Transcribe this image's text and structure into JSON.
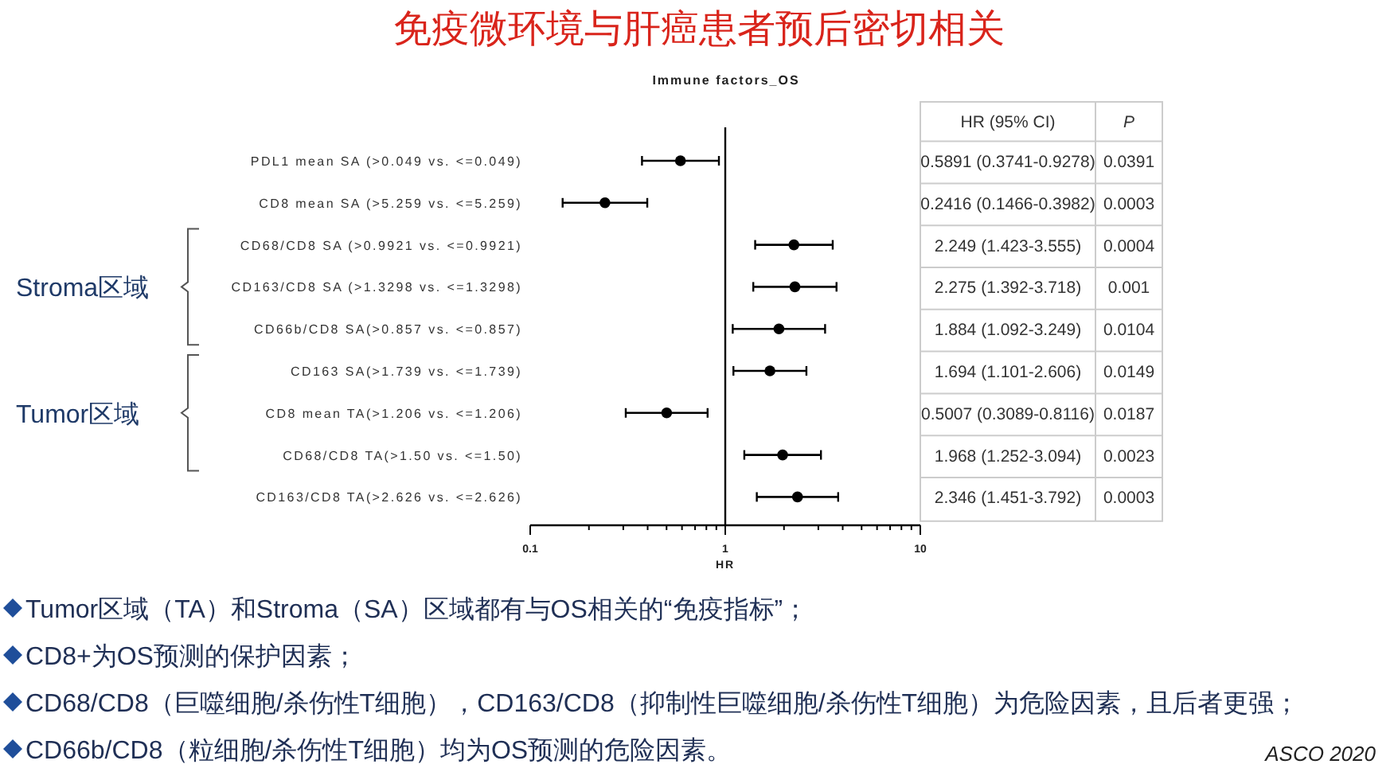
{
  "chart_data": {
    "type": "scatter",
    "orientation": "horizontal",
    "title": "免疫微环境与肝癌患者预后密切相关",
    "subtitle": "Immune factors_OS",
    "xlabel": "HR",
    "log": "x",
    "xlim": [
      0.1,
      10
    ],
    "xticks": [
      0.1,
      1,
      10
    ],
    "marker": "circle",
    "grid": false,
    "categories": [
      "PDL1 mean SA (>0.049 vs. <=0.049)",
      "CD8 mean SA (>5.259 vs. <=5.259)",
      "CD68/CD8 SA (>0.9921 vs. <=0.9921)",
      "CD163/CD8 SA (>1.3298 vs. <=1.3298)",
      "CD66b/CD8 SA(>0.857 vs. <=0.857)",
      "CD163 SA(>1.739 vs. <=1.739)",
      "CD8 mean TA(>1.206 vs. <=1.206)",
      "CD68/CD8 TA(>1.50 vs. <=1.50)",
      "CD163/CD8 TA(>2.626 vs. <=2.626)"
    ],
    "series": [
      {
        "color": "#000000",
        "values": [
          0.5891,
          0.2416,
          2.249,
          2.275,
          1.884,
          1.694,
          0.5007,
          1.968,
          2.346
        ],
        "errors": [
          [
            0.3741,
            0.9278
          ],
          [
            0.1466,
            0.3982
          ],
          [
            1.423,
            3.555
          ],
          [
            1.392,
            3.718
          ],
          [
            1.092,
            3.249
          ],
          [
            1.101,
            2.606
          ],
          [
            0.3089,
            0.8116
          ],
          [
            1.252,
            3.094
          ],
          [
            1.451,
            3.792
          ]
        ]
      }
    ],
    "ref_lines": [
      {
        "axis": "x",
        "value": 1,
        "color": "#000000",
        "line_style": "solid"
      }
    ],
    "annotations": [
      "HR (95% CI)",
      "P",
      "0.5891 (0.3741-0.9278)",
      "0.2416 (0.1466-0.3982)",
      "2.249 (1.423-3.555)",
      "2.275 (1.392-3.718)",
      "1.884 (1.092-3.249)",
      "1.694 (1.101-2.606)",
      "0.5007 (0.3089-0.8116)",
      "1.968 (1.252-3.094)",
      "2.346 (1.451-3.792)",
      "0.0391",
      "0.0003",
      "0.0004",
      "0.001",
      "0.0104",
      "0.0149",
      "0.0187",
      "0.0023",
      "0.0003",
      "Stroma区域",
      "Tumor区域",
      "Tumor区域（TA）和Stroma（SA）区域都有与OS相关的“免疫指标”；",
      "CD8+为OS预测的保护因素；",
      "CD68/CD8（巨噬细胞/杀伤性T细胞），CD163/CD8（抑制性巨噬细胞/杀伤性T细胞）为危险因素，且后者更强；",
      "CD66b/CD8（粒细胞/杀伤性T细胞）均为OS预测的危险因素。",
      "ASCO 2020"
    ]
  }
}
